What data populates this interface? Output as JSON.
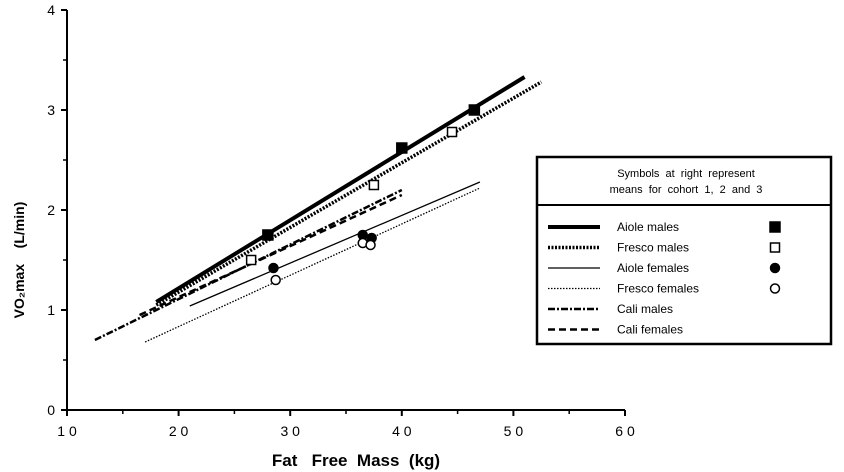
{
  "chart_data": {
    "type": "line",
    "xlabel": "Fat   Free  Mass  (kg)",
    "ylabel": "VO₂max    (L/min)",
    "xlim": [
      10,
      60
    ],
    "ylim": [
      0,
      4
    ],
    "xticks": [
      10,
      20,
      30,
      40,
      50,
      60
    ],
    "yticks": [
      0,
      1,
      2,
      3,
      4
    ],
    "xtick_labels": [
      "1 0",
      "2 0",
      "3 0",
      "4 0",
      "5 0",
      "6 0"
    ],
    "ytick_labels": [
      "0",
      "1",
      "2",
      "3",
      "4"
    ],
    "grid": false,
    "legend_position": "right",
    "legend_header": [
      "Symbols  at  right  represent",
      "means  for  cohort  1,  2  and  3"
    ],
    "series": [
      {
        "name": "Aiole males",
        "x": [
          18,
          51
        ],
        "y": [
          1.08,
          3.33
        ],
        "style": "thick-solid",
        "marker": "filled-square",
        "means": [
          {
            "x": 28,
            "y": 1.75
          },
          {
            "x": 40,
            "y": 2.62
          },
          {
            "x": 46.5,
            "y": 3.0
          }
        ]
      },
      {
        "name": "Fresco males",
        "x": [
          18,
          52.5
        ],
        "y": [
          1.05,
          3.28
        ],
        "style": "thick-dotted",
        "marker": "open-square",
        "means": [
          {
            "x": 26.5,
            "y": 1.5
          },
          {
            "x": 37.5,
            "y": 2.25
          },
          {
            "x": 44.5,
            "y": 2.78
          }
        ]
      },
      {
        "name": "Aiole females",
        "x": [
          21,
          47
        ],
        "y": [
          1.04,
          2.28
        ],
        "style": "thin-solid",
        "marker": "filled-circle",
        "means": [
          {
            "x": 28.5,
            "y": 1.42
          },
          {
            "x": 36.5,
            "y": 1.75
          },
          {
            "x": 37.3,
            "y": 1.72
          }
        ]
      },
      {
        "name": "Fresco females",
        "x": [
          17,
          47
        ],
        "y": [
          0.68,
          2.22
        ],
        "style": "thin-dotted",
        "marker": "open-circle",
        "means": [
          {
            "x": 28.7,
            "y": 1.3
          },
          {
            "x": 36.5,
            "y": 1.67
          },
          {
            "x": 37.2,
            "y": 1.65
          }
        ]
      },
      {
        "name": "Cali males",
        "x": [
          12.5,
          40
        ],
        "y": [
          0.7,
          2.2
        ],
        "style": "dash-dot",
        "marker": "none",
        "means": []
      },
      {
        "name": "Cali females",
        "x": [
          16.5,
          40
        ],
        "y": [
          0.95,
          2.15
        ],
        "style": "dashed",
        "marker": "none",
        "means": []
      }
    ]
  }
}
